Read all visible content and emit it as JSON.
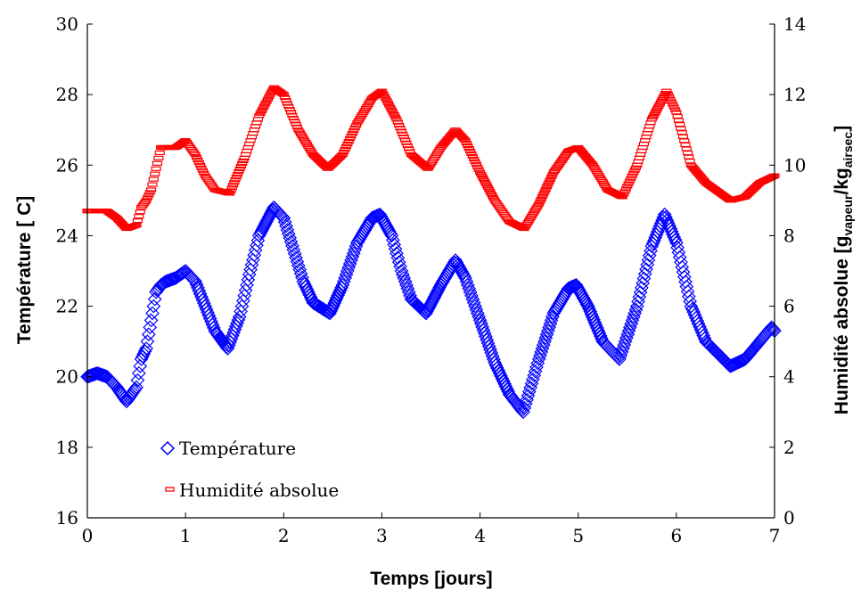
{
  "chart_data": {
    "type": "scatter",
    "xlabel": "Temps [jours]",
    "ylabel_left": "Température [ C]",
    "ylabel_right_main": "Humidité absolue [g",
    "ylabel_right_sub1": "vapeur",
    "ylabel_right_mid": "/kg",
    "ylabel_right_sub2": "airsec",
    "ylabel_right_end": "]",
    "xlim": [
      0,
      7
    ],
    "ylim_left": [
      16,
      30
    ],
    "ylim_right": [
      0,
      14
    ],
    "x_ticks": [
      "0",
      "1",
      "2",
      "3",
      "4",
      "5",
      "6",
      "7"
    ],
    "y_left_ticks": [
      "16",
      "18",
      "20",
      "22",
      "24",
      "26",
      "28",
      "30"
    ],
    "y_right_ticks": [
      "0",
      "2",
      "4",
      "6",
      "8",
      "10",
      "12",
      "14"
    ],
    "grid": false,
    "legend_position": "bottom-left",
    "series": [
      {
        "name": "Température",
        "axis": "left",
        "marker": "diamond",
        "color": "#0000ff",
        "x": [
          0,
          0.1,
          0.2,
          0.3,
          0.4,
          0.5,
          0.55,
          0.6,
          0.7,
          0.75,
          0.8,
          0.9,
          1.0,
          1.1,
          1.2,
          1.3,
          1.43,
          1.55,
          1.65,
          1.75,
          1.9,
          2.0,
          2.1,
          2.2,
          2.3,
          2.47,
          2.6,
          2.75,
          2.9,
          2.98,
          3.1,
          3.2,
          3.3,
          3.45,
          3.6,
          3.75,
          3.85,
          4.0,
          4.15,
          4.3,
          4.44,
          4.6,
          4.75,
          4.9,
          4.98,
          5.1,
          5.25,
          5.42,
          5.6,
          5.75,
          5.88,
          6.0,
          6.15,
          6.3,
          6.55,
          6.7,
          6.85,
          6.97,
          7.0
        ],
        "y": [
          20.0,
          20.1,
          20.0,
          19.7,
          19.3,
          19.7,
          20.5,
          20.8,
          22.4,
          22.6,
          22.7,
          22.8,
          23.0,
          22.7,
          22.0,
          21.3,
          20.8,
          21.7,
          22.9,
          24.0,
          24.8,
          24.5,
          23.6,
          22.7,
          22.1,
          21.8,
          22.6,
          23.8,
          24.5,
          24.6,
          24.0,
          23.0,
          22.2,
          21.8,
          22.6,
          23.3,
          22.8,
          21.6,
          20.4,
          19.5,
          19.0,
          20.5,
          21.8,
          22.5,
          22.6,
          22.0,
          21.0,
          20.5,
          22.0,
          23.7,
          24.6,
          23.8,
          22.0,
          21.0,
          20.3,
          20.5,
          21.0,
          21.4,
          21.3
        ]
      },
      {
        "name": "Humidité absolue",
        "axis": "right",
        "marker": "dash",
        "color": "#ff0000",
        "x": [
          0,
          0.1,
          0.2,
          0.3,
          0.4,
          0.5,
          0.55,
          0.6,
          0.65,
          0.75,
          0.9,
          1.0,
          1.1,
          1.2,
          1.3,
          1.45,
          1.6,
          1.75,
          1.9,
          2.0,
          2.15,
          2.3,
          2.45,
          2.6,
          2.75,
          2.9,
          3.0,
          3.15,
          3.3,
          3.47,
          3.6,
          3.75,
          3.85,
          4.0,
          4.15,
          4.3,
          4.45,
          4.6,
          4.75,
          4.9,
          5.0,
          5.15,
          5.3,
          5.45,
          5.6,
          5.75,
          5.9,
          6.0,
          6.15,
          6.3,
          6.55,
          6.7,
          6.85,
          7.0
        ],
        "y": [
          8.7,
          8.7,
          8.7,
          8.5,
          8.2,
          8.3,
          8.8,
          9.0,
          9.3,
          10.5,
          10.5,
          10.7,
          10.3,
          9.7,
          9.3,
          9.2,
          10.2,
          11.4,
          12.2,
          12.0,
          11.0,
          10.3,
          9.9,
          10.3,
          11.2,
          11.9,
          12.1,
          11.3,
          10.3,
          9.9,
          10.5,
          11.0,
          10.7,
          9.8,
          9.0,
          8.4,
          8.2,
          8.9,
          9.8,
          10.4,
          10.5,
          10.0,
          9.3,
          9.1,
          10.0,
          11.3,
          12.1,
          11.5,
          10.0,
          9.5,
          9.0,
          9.1,
          9.5,
          9.7
        ]
      }
    ]
  }
}
